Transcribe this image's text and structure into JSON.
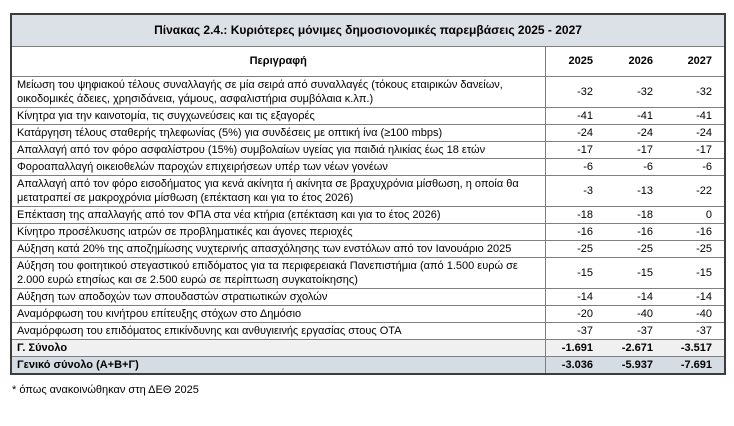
{
  "table": {
    "title": "Πίνακας 2.4.: Κυριότερες μόνιμες δημοσιονομικές παρεμβάσεις 2025 - 2027",
    "header": {
      "description": "Περιγραφή",
      "years": [
        "2025",
        "2026",
        "2027"
      ]
    },
    "rows": [
      {
        "description": "Μείωση του ψηφιακού τέλους συναλλαγής σε μία σειρά από συναλλαγές (τόκους εταιρικών δανείων, οικοδομικές άδειες, χρησιδάνεια, γάμους, ασφαλιστήρια συμβόλαια κ.λπ.)",
        "values": [
          "-32",
          "-32",
          "-32"
        ]
      },
      {
        "description": "Κίνητρα για την καινοτομία, τις συγχωνεύσεις και τις εξαγορές",
        "values": [
          "-41",
          "-41",
          "-41"
        ]
      },
      {
        "description": "Κατάργηση τέλους σταθερής τηλεφωνίας (5%) για συνδέσεις με οπτική ίνα (≥100 mbps)",
        "values": [
          "-24",
          "-24",
          "-24"
        ]
      },
      {
        "description": "Απαλλαγή από τον φόρο ασφαλίστρου (15%) συμβολαίων υγείας για παιδιά ηλικίας έως 18 ετών",
        "values": [
          "-17",
          "-17",
          "-17"
        ]
      },
      {
        "description": "Φοροαπαλλαγή οικειοθελών παροχών επιχειρήσεων υπέρ των νέων γονέων",
        "values": [
          "-6",
          "-6",
          "-6"
        ]
      },
      {
        "description": "Απαλλαγή από τον φόρο εισοδήματος για κενά ακίνητα ή ακίνητα σε βραχυχρόνια μίσθωση, η οποία θα μετατραπεί σε μακροχρόνια μίσθωση (επέκταση και για το έτος 2026)",
        "values": [
          "-3",
          "-13",
          "-22"
        ]
      },
      {
        "description": "Επέκταση της απαλλαγής από τον ΦΠΑ στα νέα κτήρια (επέκταση και για το έτος 2026)",
        "values": [
          "-18",
          "-18",
          "0"
        ]
      },
      {
        "description": "Κίνητρο προσέλκυσης ιατρών σε προβληματικές και άγονες περιοχές",
        "values": [
          "-16",
          "-16",
          "-16"
        ]
      },
      {
        "description": "Αύξηση κατά 20% της αποζημίωσης νυχτερινής απασχόλησης των ενστόλων από τον Ιανουάριο 2025",
        "values": [
          "-25",
          "-25",
          "-25"
        ]
      },
      {
        "description": "Αύξηση του φοιτητικού στεγαστικού επιδόματος για τα περιφερειακά Πανεπιστήμια (από 1.500 ευρώ σε 2.000 ευρώ ετησίως και σε 2.500 ευρώ σε περίπτωση συγκατοίκησης)",
        "values": [
          "-15",
          "-15",
          "-15"
        ]
      },
      {
        "description": "Αύξηση των αποδοχών των σπουδαστών στρατιωτικών σχολών",
        "values": [
          "-14",
          "-14",
          "-14"
        ]
      },
      {
        "description": "Αναμόρφωση του κινήτρου επίτευξης στόχων στο Δημόσιο",
        "values": [
          "-20",
          "-40",
          "-40"
        ]
      },
      {
        "description": "Αναμόρφωση του επιδόματος επικίνδυνης και ανθυγιεινής εργασίας στους ΟΤΑ",
        "values": [
          "-37",
          "-37",
          "-37"
        ]
      }
    ],
    "totals": [
      {
        "label": "Γ. Σύνολο",
        "values": [
          "-1.691",
          "-2.671",
          "-3.517"
        ],
        "kind": "subtotal"
      },
      {
        "label": "Γενικό σύνολο (Α+Β+Γ)",
        "values": [
          "-3.036",
          "-5.937",
          "-7.691"
        ],
        "kind": "grandtotal"
      }
    ],
    "footnote": "* όπως ανακοινώθηκαν στη ΔΕΘ 2025"
  },
  "colors": {
    "title_band": "#dce1e8",
    "subtotal_band": "#f0f0f0",
    "grandtotal_band": "#d6dce4",
    "grid_line": "#7f7f7f",
    "frame": "#3c3c3c"
  }
}
